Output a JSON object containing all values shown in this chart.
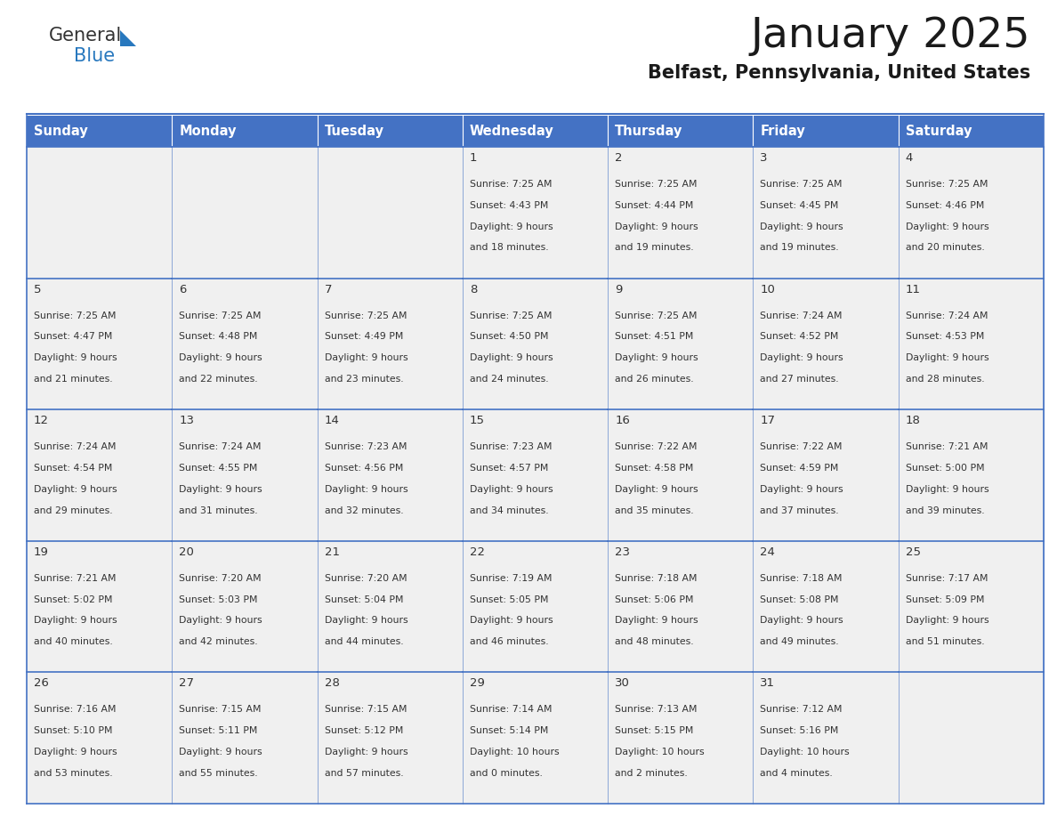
{
  "title": "January 2025",
  "subtitle": "Belfast, Pennsylvania, United States",
  "header_bg_color": "#4472C4",
  "header_text_color": "#FFFFFF",
  "day_names": [
    "Sunday",
    "Monday",
    "Tuesday",
    "Wednesday",
    "Thursday",
    "Friday",
    "Saturday"
  ],
  "title_font_size": 34,
  "subtitle_font_size": 15,
  "header_font_size": 10.5,
  "cell_text_fontsize": 7.8,
  "day_num_fontsize": 9.5,
  "cell_bg_color": "#F0F0F0",
  "grid_line_color": "#4472C4",
  "text_color": "#333333",
  "logo_general_color": "#333333",
  "logo_blue_color": "#2878BE",
  "days": [
    {
      "day": 1,
      "col": 3,
      "row": 0,
      "sunrise": "7:25 AM",
      "sunset": "4:43 PM",
      "daylight_h": "9 hours",
      "daylight_m": "and 18 minutes."
    },
    {
      "day": 2,
      "col": 4,
      "row": 0,
      "sunrise": "7:25 AM",
      "sunset": "4:44 PM",
      "daylight_h": "9 hours",
      "daylight_m": "and 19 minutes."
    },
    {
      "day": 3,
      "col": 5,
      "row": 0,
      "sunrise": "7:25 AM",
      "sunset": "4:45 PM",
      "daylight_h": "9 hours",
      "daylight_m": "and 19 minutes."
    },
    {
      "day": 4,
      "col": 6,
      "row": 0,
      "sunrise": "7:25 AM",
      "sunset": "4:46 PM",
      "daylight_h": "9 hours",
      "daylight_m": "and 20 minutes."
    },
    {
      "day": 5,
      "col": 0,
      "row": 1,
      "sunrise": "7:25 AM",
      "sunset": "4:47 PM",
      "daylight_h": "9 hours",
      "daylight_m": "and 21 minutes."
    },
    {
      "day": 6,
      "col": 1,
      "row": 1,
      "sunrise": "7:25 AM",
      "sunset": "4:48 PM",
      "daylight_h": "9 hours",
      "daylight_m": "and 22 minutes."
    },
    {
      "day": 7,
      "col": 2,
      "row": 1,
      "sunrise": "7:25 AM",
      "sunset": "4:49 PM",
      "daylight_h": "9 hours",
      "daylight_m": "and 23 minutes."
    },
    {
      "day": 8,
      "col": 3,
      "row": 1,
      "sunrise": "7:25 AM",
      "sunset": "4:50 PM",
      "daylight_h": "9 hours",
      "daylight_m": "and 24 minutes."
    },
    {
      "day": 9,
      "col": 4,
      "row": 1,
      "sunrise": "7:25 AM",
      "sunset": "4:51 PM",
      "daylight_h": "9 hours",
      "daylight_m": "and 26 minutes."
    },
    {
      "day": 10,
      "col": 5,
      "row": 1,
      "sunrise": "7:24 AM",
      "sunset": "4:52 PM",
      "daylight_h": "9 hours",
      "daylight_m": "and 27 minutes."
    },
    {
      "day": 11,
      "col": 6,
      "row": 1,
      "sunrise": "7:24 AM",
      "sunset": "4:53 PM",
      "daylight_h": "9 hours",
      "daylight_m": "and 28 minutes."
    },
    {
      "day": 12,
      "col": 0,
      "row": 2,
      "sunrise": "7:24 AM",
      "sunset": "4:54 PM",
      "daylight_h": "9 hours",
      "daylight_m": "and 29 minutes."
    },
    {
      "day": 13,
      "col": 1,
      "row": 2,
      "sunrise": "7:24 AM",
      "sunset": "4:55 PM",
      "daylight_h": "9 hours",
      "daylight_m": "and 31 minutes."
    },
    {
      "day": 14,
      "col": 2,
      "row": 2,
      "sunrise": "7:23 AM",
      "sunset": "4:56 PM",
      "daylight_h": "9 hours",
      "daylight_m": "and 32 minutes."
    },
    {
      "day": 15,
      "col": 3,
      "row": 2,
      "sunrise": "7:23 AM",
      "sunset": "4:57 PM",
      "daylight_h": "9 hours",
      "daylight_m": "and 34 minutes."
    },
    {
      "day": 16,
      "col": 4,
      "row": 2,
      "sunrise": "7:22 AM",
      "sunset": "4:58 PM",
      "daylight_h": "9 hours",
      "daylight_m": "and 35 minutes."
    },
    {
      "day": 17,
      "col": 5,
      "row": 2,
      "sunrise": "7:22 AM",
      "sunset": "4:59 PM",
      "daylight_h": "9 hours",
      "daylight_m": "and 37 minutes."
    },
    {
      "day": 18,
      "col": 6,
      "row": 2,
      "sunrise": "7:21 AM",
      "sunset": "5:00 PM",
      "daylight_h": "9 hours",
      "daylight_m": "and 39 minutes."
    },
    {
      "day": 19,
      "col": 0,
      "row": 3,
      "sunrise": "7:21 AM",
      "sunset": "5:02 PM",
      "daylight_h": "9 hours",
      "daylight_m": "and 40 minutes."
    },
    {
      "day": 20,
      "col": 1,
      "row": 3,
      "sunrise": "7:20 AM",
      "sunset": "5:03 PM",
      "daylight_h": "9 hours",
      "daylight_m": "and 42 minutes."
    },
    {
      "day": 21,
      "col": 2,
      "row": 3,
      "sunrise": "7:20 AM",
      "sunset": "5:04 PM",
      "daylight_h": "9 hours",
      "daylight_m": "and 44 minutes."
    },
    {
      "day": 22,
      "col": 3,
      "row": 3,
      "sunrise": "7:19 AM",
      "sunset": "5:05 PM",
      "daylight_h": "9 hours",
      "daylight_m": "and 46 minutes."
    },
    {
      "day": 23,
      "col": 4,
      "row": 3,
      "sunrise": "7:18 AM",
      "sunset": "5:06 PM",
      "daylight_h": "9 hours",
      "daylight_m": "and 48 minutes."
    },
    {
      "day": 24,
      "col": 5,
      "row": 3,
      "sunrise": "7:18 AM",
      "sunset": "5:08 PM",
      "daylight_h": "9 hours",
      "daylight_m": "and 49 minutes."
    },
    {
      "day": 25,
      "col": 6,
      "row": 3,
      "sunrise": "7:17 AM",
      "sunset": "5:09 PM",
      "daylight_h": "9 hours",
      "daylight_m": "and 51 minutes."
    },
    {
      "day": 26,
      "col": 0,
      "row": 4,
      "sunrise": "7:16 AM",
      "sunset": "5:10 PM",
      "daylight_h": "9 hours",
      "daylight_m": "and 53 minutes."
    },
    {
      "day": 27,
      "col": 1,
      "row": 4,
      "sunrise": "7:15 AM",
      "sunset": "5:11 PM",
      "daylight_h": "9 hours",
      "daylight_m": "and 55 minutes."
    },
    {
      "day": 28,
      "col": 2,
      "row": 4,
      "sunrise": "7:15 AM",
      "sunset": "5:12 PM",
      "daylight_h": "9 hours",
      "daylight_m": "and 57 minutes."
    },
    {
      "day": 29,
      "col": 3,
      "row": 4,
      "sunrise": "7:14 AM",
      "sunset": "5:14 PM",
      "daylight_h": "10 hours",
      "daylight_m": "and 0 minutes."
    },
    {
      "day": 30,
      "col": 4,
      "row": 4,
      "sunrise": "7:13 AM",
      "sunset": "5:15 PM",
      "daylight_h": "10 hours",
      "daylight_m": "and 2 minutes."
    },
    {
      "day": 31,
      "col": 5,
      "row": 4,
      "sunrise": "7:12 AM",
      "sunset": "5:16 PM",
      "daylight_h": "10 hours",
      "daylight_m": "and 4 minutes."
    }
  ]
}
